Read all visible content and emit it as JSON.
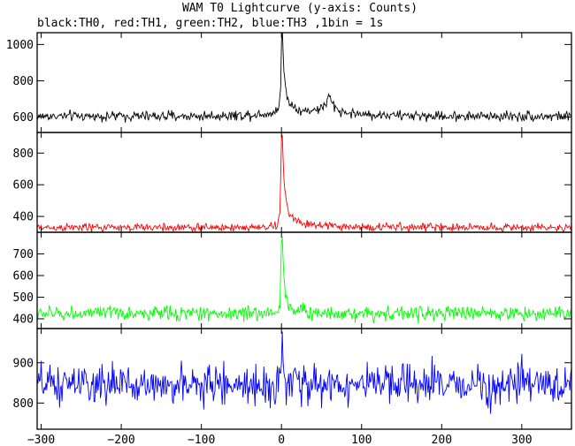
{
  "chart_data": {
    "type": "line",
    "title": "WAM T0 Lightcurve (y-axis: Counts)",
    "subtitle": "black:TH0, red:TH1, green:TH2, blue:TH3 ,1bin = 1s",
    "xlim": [
      -305,
      362
    ],
    "x_ticks": [
      -300,
      -200,
      -100,
      0,
      100,
      200,
      300
    ],
    "grid": false,
    "legend": "none",
    "panels": [
      {
        "name": "TH0",
        "color": "#000000",
        "ylim": [
          515,
          1065
        ],
        "y_ticks": [
          600,
          800,
          1000
        ],
        "baseline": 605,
        "noise": 14,
        "x": [
          -305,
          -100,
          -50,
          -20,
          -10,
          -5,
          -3,
          -1,
          0,
          1,
          2,
          3,
          5,
          8,
          12,
          20,
          30,
          40,
          50,
          55,
          58,
          60,
          62,
          65,
          70,
          80,
          100,
          150,
          200,
          300,
          362
        ],
        "y": [
          605,
          605,
          610,
          618,
          625,
          640,
          680,
          760,
          1000,
          1060,
          980,
          860,
          760,
          700,
          670,
          645,
          630,
          640,
          650,
          670,
          700,
          710,
          690,
          660,
          640,
          625,
          615,
          608,
          605,
          605,
          605
        ]
      },
      {
        "name": "TH1",
        "color": "#ff0000",
        "ylim": [
          300,
          930
        ],
        "y_ticks": [
          400,
          600,
          800
        ],
        "baseline": 330,
        "noise": 13,
        "x": [
          -305,
          -50,
          -10,
          -5,
          -2,
          -1,
          0,
          1,
          2,
          3,
          5,
          8,
          12,
          20,
          30,
          50,
          100,
          362
        ],
        "y": [
          330,
          330,
          335,
          350,
          420,
          650,
          870,
          900,
          780,
          640,
          520,
          440,
          400,
          370,
          352,
          340,
          333,
          330
        ]
      },
      {
        "name": "TH2",
        "color": "#00ff00",
        "ylim": [
          355,
          800
        ],
        "y_ticks": [
          400,
          500,
          600,
          700
        ],
        "baseline": 425,
        "noise": 17,
        "x": [
          -305,
          -50,
          -10,
          -5,
          -2,
          -1,
          0,
          1,
          2,
          3,
          5,
          8,
          12,
          20,
          30,
          50,
          100,
          362
        ],
        "y": [
          425,
          425,
          428,
          435,
          470,
          600,
          770,
          790,
          680,
          580,
          510,
          470,
          455,
          440,
          432,
          428,
          425,
          425
        ]
      },
      {
        "name": "TH3",
        "color": "#0000ff",
        "ylim": [
          735,
          985
        ],
        "y_ticks": [
          800,
          900
        ],
        "baseline": 845,
        "noise": 24,
        "x": [
          -305,
          -10,
          -3,
          -1,
          0,
          1,
          2,
          4,
          8,
          20,
          362
        ],
        "y": [
          845,
          845,
          848,
          860,
          920,
          975,
          900,
          860,
          850,
          846,
          845
        ]
      }
    ]
  }
}
